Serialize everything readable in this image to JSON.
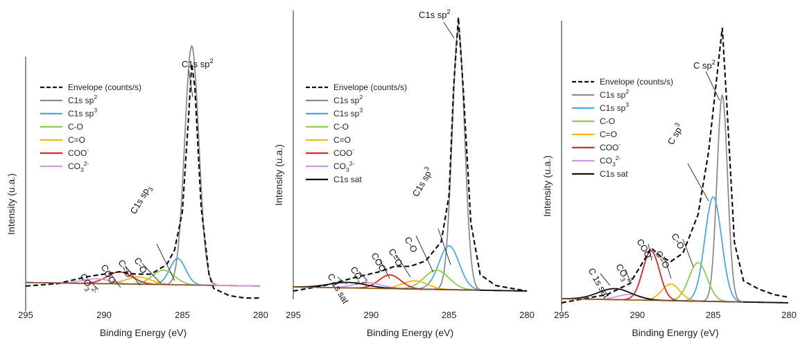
{
  "chart_data": [
    {
      "type": "line",
      "title": "",
      "xlabel": "Binding Energy (eV)",
      "ylabel": "Intensity (u.a.)",
      "xlim": [
        295,
        280
      ],
      "x_ticks": [
        "295",
        "290",
        "285",
        "280"
      ],
      "legend": {
        "position": "top-left"
      },
      "legend_entries": [
        {
          "name": "Envelope (counts/s)",
          "color": "#111111",
          "style": "dashed"
        },
        {
          "name": "C1s sp",
          "sup": "2",
          "color": "#8c8c8c"
        },
        {
          "name": "C1s sp",
          "sup": "3",
          "color": "#4ba8e6"
        },
        {
          "name": "C-O",
          "color": "#8dcc4e"
        },
        {
          "name": "C=O",
          "color": "#f2b705"
        },
        {
          "name": "COO",
          "sup": "-",
          "color": "#e52222"
        },
        {
          "name": "CO",
          "sub": "3",
          "sup": "2-",
          "color": "#cc99e6"
        }
      ],
      "annotations": [
        {
          "text": "C1s sp",
          "sup": "2"
        },
        {
          "text": "C1s sp",
          "sub": "3"
        },
        {
          "text": "C-O"
        },
        {
          "text": "C=O"
        },
        {
          "text": "COO",
          "sup": "-"
        },
        {
          "text": "CO",
          "sub": "3",
          "sup": "2-"
        }
      ],
      "baseline": 0.07,
      "components": [
        {
          "name": "C1s sp2",
          "color": "#8c8c8c",
          "center": 284.4,
          "height": 1.0,
          "sigma": 0.45
        },
        {
          "name": "C1s sp3",
          "color": "#4ba8e6",
          "center": 285.3,
          "height": 0.11,
          "sigma": 0.5
        },
        {
          "name": "C-O",
          "color": "#8dcc4e",
          "center": 286.2,
          "height": 0.06,
          "sigma": 0.7
        },
        {
          "name": "C=O",
          "color": "#f2b705",
          "center": 287.8,
          "height": 0.03,
          "sigma": 0.8
        },
        {
          "name": "COO-",
          "color": "#e52222",
          "center": 289.0,
          "height": 0.05,
          "sigma": 0.8
        },
        {
          "name": "CO32-",
          "color": "#cc99e6",
          "center": 290.5,
          "height": 0.02,
          "sigma": 0.9
        }
      ],
      "series": [
        {
          "name": "Envelope (counts/s)",
          "values_at": [
            [
              295,
              0.07
            ],
            [
              293,
              0.08
            ],
            [
              291,
              0.11
            ],
            [
              290,
              0.12
            ],
            [
              289,
              0.13
            ],
            [
              288,
              0.12
            ],
            [
              287,
              0.12
            ],
            [
              286,
              0.16
            ],
            [
              285.5,
              0.22
            ],
            [
              285,
              0.38
            ],
            [
              284.6,
              0.78
            ],
            [
              284.4,
              1.0
            ],
            [
              284.2,
              0.9
            ],
            [
              283.8,
              0.4
            ],
            [
              283.3,
              0.12
            ],
            [
              283,
              0.06
            ],
            [
              282,
              0.03
            ],
            [
              281,
              0.02
            ],
            [
              280,
              0.02
            ]
          ]
        }
      ]
    },
    {
      "type": "line",
      "title": "",
      "xlabel": "Binding Energy (eV)",
      "ylabel": "Intensity (u.a.)",
      "xlim": [
        295,
        280
      ],
      "x_ticks": [
        "295",
        "290",
        "285",
        "280"
      ],
      "legend": {
        "position": "top-left"
      },
      "legend_entries": [
        {
          "name": "Envelope (counts/s)",
          "color": "#111111",
          "style": "dashed"
        },
        {
          "name": "C1s sp",
          "sup": "2",
          "color": "#8c8c8c"
        },
        {
          "name": "C1s sp",
          "sup": "3",
          "color": "#4ba8e6"
        },
        {
          "name": "C-O",
          "color": "#8dcc4e"
        },
        {
          "name": "C=O",
          "color": "#f2b705"
        },
        {
          "name": "COO",
          "sup": "-",
          "color": "#e52222"
        },
        {
          "name": "CO",
          "sub": "3",
          "sup": "2-",
          "color": "#cc99e6"
        },
        {
          "name": "C1s sat",
          "color": "#111111"
        }
      ],
      "annotations": [
        {
          "text": "C1s sp",
          "sup": "2"
        },
        {
          "text": "C1s sp",
          "sup": "3"
        },
        {
          "text": "C-O"
        },
        {
          "text": "C=O"
        },
        {
          "text": "COO",
          "sup": "-"
        },
        {
          "text": "CO",
          "sup": "2-",
          "sub": "3"
        },
        {
          "text": "C 1s sat"
        }
      ],
      "baseline": 0.0,
      "components": [
        {
          "name": "C1s sp2",
          "color": "#8c8c8c",
          "center": 284.4,
          "height": 0.95,
          "sigma": 0.4
        },
        {
          "name": "C1s sp3",
          "color": "#4ba8e6",
          "center": 285.0,
          "height": 0.16,
          "sigma": 0.65
        },
        {
          "name": "C-O",
          "color": "#8dcc4e",
          "center": 285.8,
          "height": 0.07,
          "sigma": 0.8
        },
        {
          "name": "C=O",
          "color": "#f2b705",
          "center": 287.2,
          "height": 0.03,
          "sigma": 0.8
        },
        {
          "name": "COO-",
          "color": "#e52222",
          "center": 288.8,
          "height": 0.05,
          "sigma": 0.7
        },
        {
          "name": "CO32-",
          "color": "#cc99e6",
          "center": 290.2,
          "height": 0.02,
          "sigma": 0.9
        },
        {
          "name": "C1s sat",
          "color": "#111111",
          "center": 291.5,
          "height": 0.02,
          "sigma": 1.2
        }
      ],
      "series": [
        {
          "name": "Envelope (counts/s)",
          "values_at": [
            [
              295,
              0.0
            ],
            [
              293,
              0.02
            ],
            [
              291,
              0.05
            ],
            [
              289.5,
              0.07
            ],
            [
              288.5,
              0.09
            ],
            [
              287.5,
              0.09
            ],
            [
              286.5,
              0.11
            ],
            [
              285.5,
              0.18
            ],
            [
              285,
              0.35
            ],
            [
              284.7,
              0.75
            ],
            [
              284.4,
              1.0
            ],
            [
              284.1,
              0.75
            ],
            [
              283.6,
              0.25
            ],
            [
              283,
              0.06
            ],
            [
              282,
              0.02
            ],
            [
              280,
              0.0
            ]
          ]
        }
      ]
    },
    {
      "type": "line",
      "title": "",
      "xlabel": "Binding Energy (eV)",
      "ylabel": "Intensity (u.a.)",
      "xlim": [
        295,
        280
      ],
      "x_ticks": [
        "295",
        "290",
        "285",
        "280"
      ],
      "legend": {
        "position": "top-left"
      },
      "legend_entries": [
        {
          "name": "Envelope (counts/s)",
          "color": "#111111",
          "style": "dashed"
        },
        {
          "name": "C1s sp",
          "sup": "2",
          "color": "#8c8c8c"
        },
        {
          "name": "C1s sp",
          "sup": "3",
          "color": "#4ba8e6"
        },
        {
          "name": "C-O",
          "color": "#8dcc4e"
        },
        {
          "name": "C=O",
          "color": "#f2b705"
        },
        {
          "name": "COO",
          "sup": "-",
          "color": "#e52222"
        },
        {
          "name": "CO",
          "sub": "3",
          "sup": "2-",
          "color": "#cc99e6"
        },
        {
          "name": "C1s sat",
          "color": "#111111"
        }
      ],
      "annotations": [
        {
          "text": "C sp",
          "sup": "2"
        },
        {
          "text": "C sp",
          "sup": "3"
        },
        {
          "text": "C-O"
        },
        {
          "text": "C=O"
        },
        {
          "text": "COO",
          "sup": "-"
        },
        {
          "text": "CO",
          "sub": "3",
          "sup": "2-"
        },
        {
          "text": "C 1s sat"
        }
      ],
      "baseline": 0.0,
      "components": [
        {
          "name": "C1s sp2",
          "color": "#8c8c8c",
          "center": 284.4,
          "height": 0.75,
          "sigma": 0.35
        },
        {
          "name": "C1s sp3",
          "color": "#4ba8e6",
          "center": 285.0,
          "height": 0.38,
          "sigma": 0.55
        },
        {
          "name": "C-O",
          "color": "#8dcc4e",
          "center": 286.0,
          "height": 0.14,
          "sigma": 0.6
        },
        {
          "name": "C=O",
          "color": "#f2b705",
          "center": 287.8,
          "height": 0.06,
          "sigma": 0.6
        },
        {
          "name": "COO-",
          "color": "#e52222",
          "center": 289.1,
          "height": 0.18,
          "sigma": 0.55
        },
        {
          "name": "CO32-",
          "color": "#cc99e6",
          "center": 290.5,
          "height": 0.02,
          "sigma": 0.8
        },
        {
          "name": "C1s sat",
          "color": "#111111",
          "center": 291.5,
          "height": 0.04,
          "sigma": 1.1
        }
      ],
      "series": [
        {
          "name": "Envelope (counts/s)",
          "values_at": [
            [
              295,
              0.0
            ],
            [
              292,
              0.03
            ],
            [
              290.5,
              0.07
            ],
            [
              289.5,
              0.16
            ],
            [
              289.1,
              0.2
            ],
            [
              288.5,
              0.17
            ],
            [
              287.8,
              0.15
            ],
            [
              287,
              0.18
            ],
            [
              286,
              0.32
            ],
            [
              285.3,
              0.55
            ],
            [
              284.8,
              0.8
            ],
            [
              284.4,
              1.0
            ],
            [
              284.1,
              0.72
            ],
            [
              283.6,
              0.22
            ],
            [
              283,
              0.08
            ],
            [
              282,
              0.05
            ],
            [
              281,
              0.03
            ],
            [
              280,
              0.02
            ]
          ]
        }
      ]
    }
  ]
}
